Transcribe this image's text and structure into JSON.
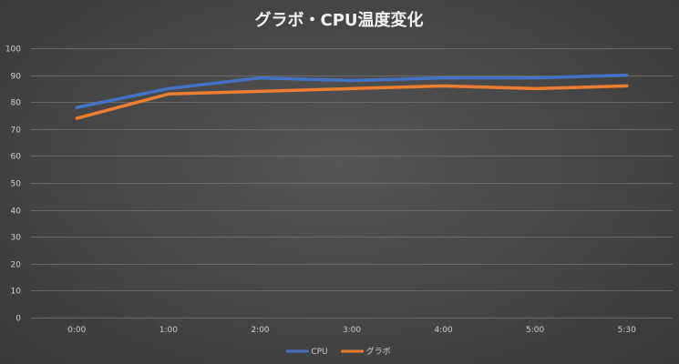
{
  "chart_data": {
    "type": "line",
    "title": "グラボ・CPU温度変化",
    "categories": [
      "0:00",
      "1:00",
      "2:00",
      "3:00",
      "4:00",
      "5:00",
      "5:30"
    ],
    "series": [
      {
        "name": "CPU",
        "color": "#4472c4",
        "values": [
          78,
          85,
          89,
          88,
          89,
          89,
          90
        ]
      },
      {
        "name": "グラボ",
        "color": "#ed7d31",
        "values": [
          74,
          83,
          84,
          85,
          86,
          85,
          86
        ]
      }
    ],
    "yticks": [
      0,
      10,
      20,
      30,
      40,
      50,
      60,
      70,
      80,
      90,
      100
    ],
    "ylim": [
      0,
      100
    ],
    "grid": true,
    "legend": "bottom"
  }
}
